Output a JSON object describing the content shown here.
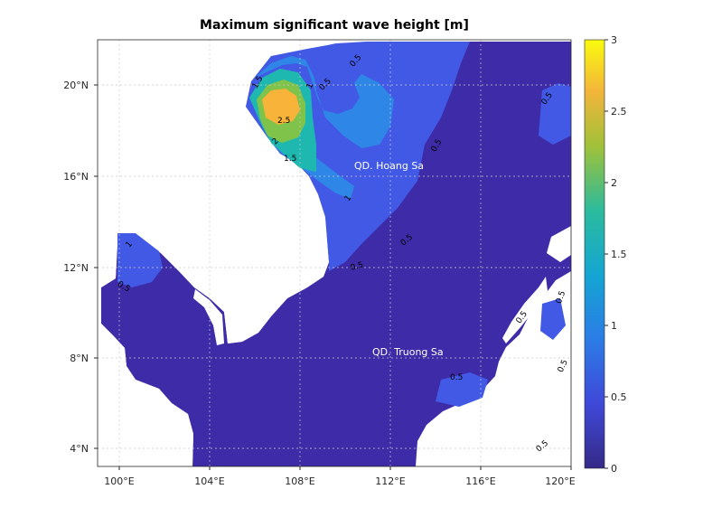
{
  "title": "Maximum significant wave height [m]",
  "colors": {
    "land": "#ffffff",
    "level_0_05": "#3e2ba8",
    "level_05_1": "#4259e6",
    "level_1_15": "#2e87e6",
    "level_15_2": "#1fb8b0",
    "level_2_25": "#7fc34a",
    "level_25_3": "#f7b33a",
    "grid": "#c8c8c8",
    "frame": "#262626"
  },
  "x_axis": {
    "ticks": [
      "100°E",
      "104°E",
      "108°E",
      "112°E",
      "116°E",
      "120°E"
    ]
  },
  "y_axis": {
    "ticks": [
      "20°N",
      "16°N",
      "12°N",
      "8°N",
      "4°N"
    ]
  },
  "colorbar": {
    "ticks": [
      "3",
      "2.5",
      "2",
      "1.5",
      "1",
      "0.5",
      "0"
    ],
    "colormap": "parula",
    "range": [
      0,
      3
    ]
  },
  "contour_labels": [
    "1.5",
    "1",
    "0.5",
    "2.5",
    "2",
    "1.5",
    "1",
    "0.5",
    "0.5",
    "0.5",
    "1",
    "0.5",
    "0.5",
    "0.5",
    "0.5",
    "0.5",
    "0.5",
    "0.5",
    "0.5"
  ],
  "place_labels": [
    "QD. Hoang Sa",
    "QD. Truong Sa"
  ]
}
